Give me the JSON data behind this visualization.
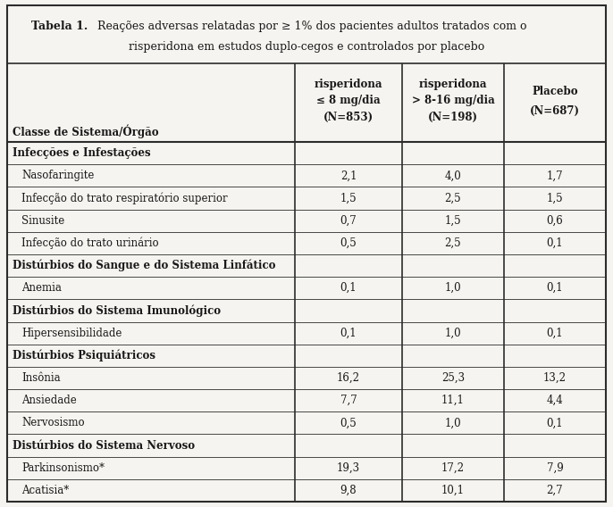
{
  "title_bold": "Tabela 1.",
  "title_line1": "   Reações adversas relatadas por ≥ 1% dos pacientes adultos tratados com o",
  "title_line2": "risperidona em estudos duplo-cegos e controlados por placebo",
  "col_headers": [
    [
      "risperidona",
      "≤ 8 mg/dia",
      "(N=853)"
    ],
    [
      "risperidona",
      "> 8-16 mg/dia",
      "(N=198)"
    ],
    [
      "Placebo",
      "",
      "(N=687)"
    ]
  ],
  "row_header_label": "Classe de Sistema/Órgão",
  "rows": [
    {
      "label": "Infecções e Infestações",
      "bold": true,
      "indent": false,
      "values": [
        "",
        "",
        ""
      ]
    },
    {
      "label": "Nasofaringite",
      "bold": false,
      "indent": true,
      "values": [
        "2,1",
        "4,0",
        "1,7"
      ]
    },
    {
      "label": "Infecção do trato respiratório superior",
      "bold": false,
      "indent": true,
      "values": [
        "1,5",
        "2,5",
        "1,5"
      ]
    },
    {
      "label": "Sinusite",
      "bold": false,
      "indent": true,
      "values": [
        "0,7",
        "1,5",
        "0,6"
      ]
    },
    {
      "label": "Infecção do trato urinário",
      "bold": false,
      "indent": true,
      "values": [
        "0,5",
        "2,5",
        "0,1"
      ]
    },
    {
      "label": "Distúrbios do Sangue e do Sistema Linfático",
      "bold": true,
      "indent": false,
      "values": [
        "",
        "",
        ""
      ]
    },
    {
      "label": "Anemia",
      "bold": false,
      "indent": true,
      "values": [
        "0,1",
        "1,0",
        "0,1"
      ]
    },
    {
      "label": "Distúrbios do Sistema Imunológico",
      "bold": true,
      "indent": false,
      "values": [
        "",
        "",
        ""
      ]
    },
    {
      "label": "Hipersensibilidade",
      "bold": false,
      "indent": true,
      "values": [
        "0,1",
        "1,0",
        "0,1"
      ]
    },
    {
      "label": "Distúrbios Psiquiátricos",
      "bold": true,
      "indent": false,
      "values": [
        "",
        "",
        ""
      ]
    },
    {
      "label": "Insônia",
      "bold": false,
      "indent": true,
      "values": [
        "16,2",
        "25,3",
        "13,2"
      ]
    },
    {
      "label": "Ansiedade",
      "bold": false,
      "indent": true,
      "values": [
        "7,7",
        "11,1",
        "4,4"
      ]
    },
    {
      "label": "Nervosismo",
      "bold": false,
      "indent": true,
      "values": [
        "0,5",
        "1,0",
        "0,1"
      ]
    },
    {
      "label": "Distúrbios do Sistema Nervoso",
      "bold": true,
      "indent": false,
      "values": [
        "",
        "",
        ""
      ]
    },
    {
      "label": "Parkinsonismo*",
      "bold": false,
      "indent": true,
      "values": [
        "19,3",
        "17,2",
        "7,9"
      ]
    },
    {
      "label": "Acatisia*",
      "bold": false,
      "indent": true,
      "values": [
        "9,8",
        "10,1",
        "2,7"
      ]
    }
  ],
  "bg_color": "#f5f4f0",
  "border_color": "#2c2c2c",
  "text_color": "#1a1818",
  "font_size": 8.5,
  "title_font_size": 9.0
}
